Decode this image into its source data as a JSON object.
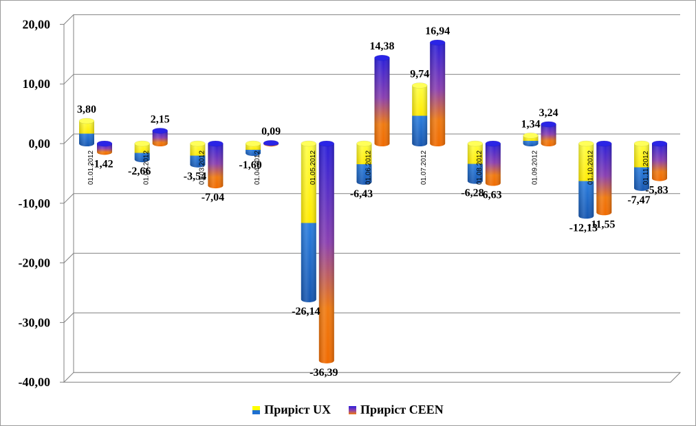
{
  "chart_data": {
    "type": "bar",
    "categories": [
      "01.01.2012",
      "01.02.2012",
      "01.03.2012",
      "01.04.2012",
      "01.05.2012",
      "01.06.2012",
      "01.07.2012",
      "01.08.2012",
      "01.09.2012",
      "01.10.2012",
      "01.11.2012"
    ],
    "series": [
      {
        "name": "Приріст UX",
        "values": [
          3.8,
          -2.66,
          -3.54,
          -1.6,
          -26.14,
          -6.43,
          9.74,
          -6.28,
          1.34,
          -12.13,
          -7.47
        ],
        "labels": [
          "3,80",
          "-2,66",
          "-3,54",
          "-1,60",
          "-26,14",
          "-6,43",
          "9,74",
          "-6,28",
          "1,34",
          "-12,13",
          "-7,47"
        ]
      },
      {
        "name": "Приріст CEEN",
        "values": [
          -1.42,
          2.15,
          -7.04,
          0.09,
          -36.39,
          14.38,
          16.94,
          -6.63,
          3.24,
          -11.55,
          -5.83
        ],
        "labels": [
          "-1,42",
          "2,15",
          "-7,04",
          "0,09",
          "-36,39",
          "14,38",
          "16,94",
          "-6,63",
          "3,24",
          "-11,55",
          "-5,83"
        ]
      }
    ],
    "yticks": [
      "20,00",
      "10,00",
      "0,00",
      "-10,00",
      "-20,00",
      "-30,00",
      "-40,00"
    ],
    "ytick_values": [
      20,
      10,
      0,
      -10,
      -20,
      -30,
      -40
    ],
    "ylim": [
      -40,
      20
    ],
    "grid": true,
    "legend_position": "bottom",
    "colors": {
      "ux_top": "#ffff00",
      "ux_bottom": "#1e6fd0",
      "ceen_top": "#2a1fd9",
      "ceen_mid": "#8a3fb0",
      "ceen_bottom": "#f07a10",
      "grid": "#808080"
    }
  },
  "legend": {
    "items": [
      {
        "label": "Приріст UX"
      },
      {
        "label": "Приріст CEEN"
      }
    ]
  }
}
